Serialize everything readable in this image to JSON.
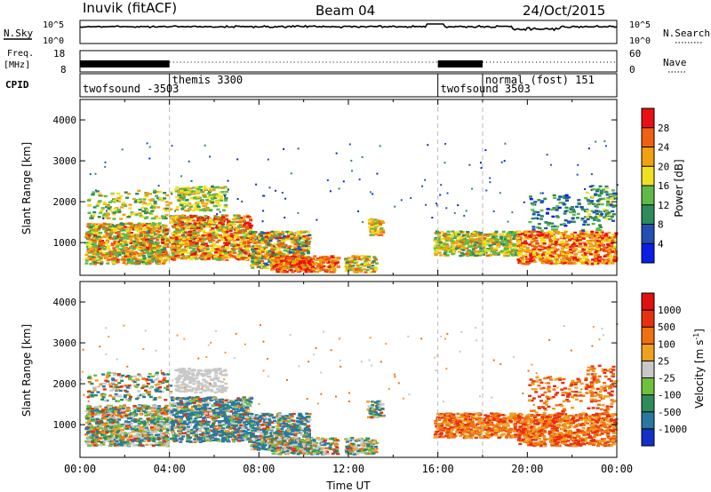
{
  "header": {
    "station": "Inuvik (fitACF)",
    "beam": "Beam 04",
    "date": "24/Oct/2015"
  },
  "top_panels": {
    "nsky_label": "N.Sky",
    "nsky_ticks": [
      "10^5",
      "10^0"
    ],
    "nsearch_label": "N.Search",
    "nsearch_ticks": [
      "10^5",
      "10^0"
    ],
    "freq_label_1": "Freq.",
    "freq_label_2": "[MHz]",
    "freq_ticks": [
      "18",
      "8"
    ],
    "nave_label": "Nave",
    "nave_ticks": [
      "60",
      "0"
    ],
    "cpid_label": "CPID",
    "cpid_segments": [
      {
        "label": "twofsound -3503",
        "start": 0,
        "end": 4
      },
      {
        "label": "themis 3300",
        "start": 4,
        "end": 16
      },
      {
        "label": "twofsound 3503",
        "start": 16,
        "end": 18
      },
      {
        "label": "normal (fost) 151",
        "start": 18,
        "end": 24
      }
    ]
  },
  "chart_data": [
    {
      "type": "heatmap",
      "ylabel": "Slant Range [km]",
      "xlim": [
        0,
        24
      ],
      "ylim": [
        200,
        4500
      ],
      "yticks": [
        "1000",
        "2000",
        "3000",
        "4000"
      ],
      "colorbar_label": "Power [dB]",
      "colorbar_ticks": [
        "4",
        "8",
        "12",
        "16",
        "20",
        "24",
        "28"
      ],
      "colorbar_colors": [
        "#0a1ee8",
        "#2050b4",
        "#2e8b5c",
        "#60b848",
        "#f0e020",
        "#f0a010",
        "#f06010",
        "#e81010"
      ]
    },
    {
      "type": "heatmap",
      "ylabel": "Slant Range [km]",
      "xlabel": "Time UT",
      "xlim": [
        0,
        24
      ],
      "ylim": [
        200,
        4500
      ],
      "yticks": [
        "1000",
        "2000",
        "3000",
        "4000"
      ],
      "xticks": [
        "00:00",
        "04:00",
        "08:00",
        "12:00",
        "16:00",
        "20:00",
        "00:00"
      ],
      "colorbar_label": "Velocity [m s",
      "colorbar_label_sup": "-1",
      "colorbar_label_end": "]",
      "colorbar_ticks": [
        "1000",
        "500",
        "100",
        "25",
        "-25",
        "-100",
        "-500",
        "-1000"
      ],
      "colorbar_colors": [
        "#1530c8",
        "#2a78a0",
        "#2e8b5c",
        "#70c040",
        "#c8c8c8",
        "#f0a020",
        "#f07010",
        "#e83010",
        "#e01010"
      ]
    }
  ],
  "colors": {
    "nsky_line": "#000000",
    "grid_dash": "#c0c0c0"
  }
}
